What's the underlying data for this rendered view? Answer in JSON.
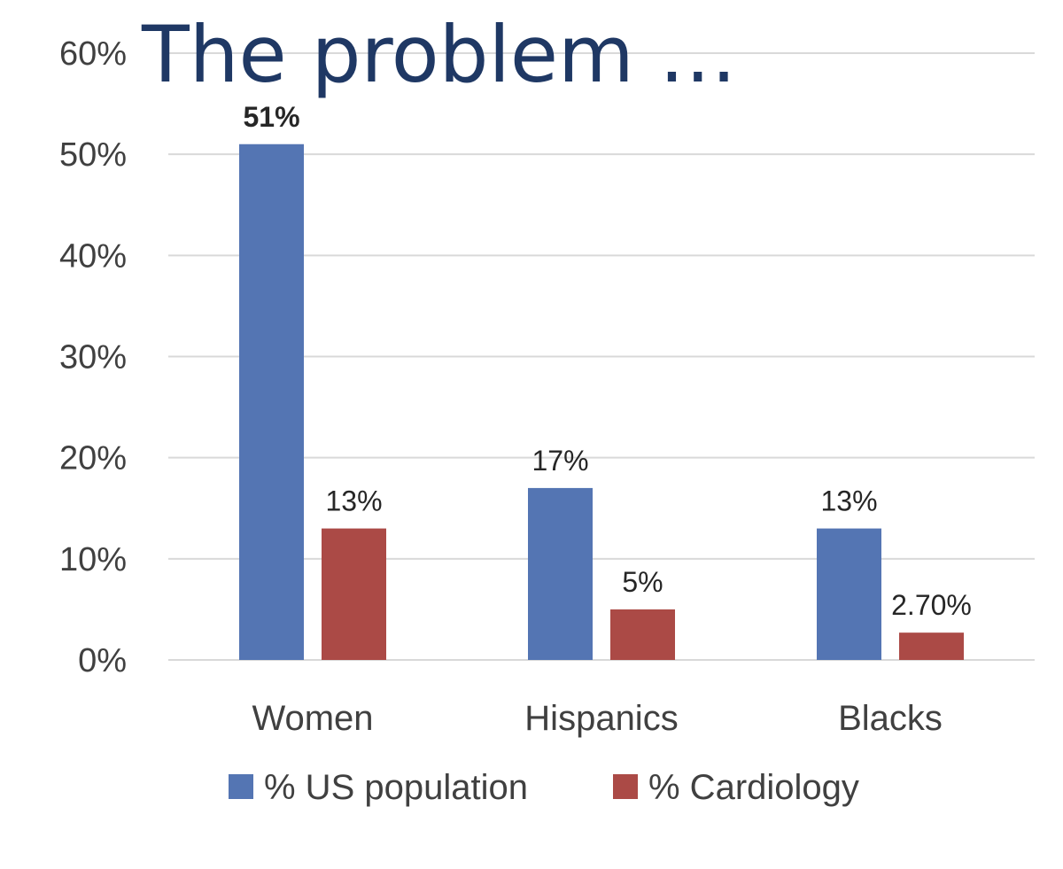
{
  "slide": {
    "title": "The problem …"
  },
  "colors": {
    "series1": "#5475b3",
    "series2": "#ab4a46",
    "highlight_label": "#e0231c",
    "grid": "#d9d9d9"
  },
  "chart_data": {
    "type": "bar",
    "title": "The problem …",
    "categories": [
      "Women",
      "Hispanics",
      "Blacks"
    ],
    "series": [
      {
        "name": "% US population",
        "values": [
          51,
          17,
          13
        ],
        "labels": [
          "51%",
          "17%",
          "13%"
        ]
      },
      {
        "name": "% Cardiology",
        "values": [
          13,
          5,
          2.7
        ],
        "labels": [
          "13%",
          "5%",
          "2.70%"
        ]
      }
    ],
    "highlighted_label": {
      "series": 0,
      "category": 0
    },
    "ylim": [
      0,
      60
    ],
    "yticks": [
      0,
      10,
      20,
      30,
      40,
      50,
      60
    ],
    "ytick_labels": [
      "0%",
      "10%",
      "20%",
      "30%",
      "40%",
      "50%",
      "60%"
    ],
    "grid": true,
    "legend": "bottom",
    "xlabel": "",
    "ylabel": ""
  }
}
